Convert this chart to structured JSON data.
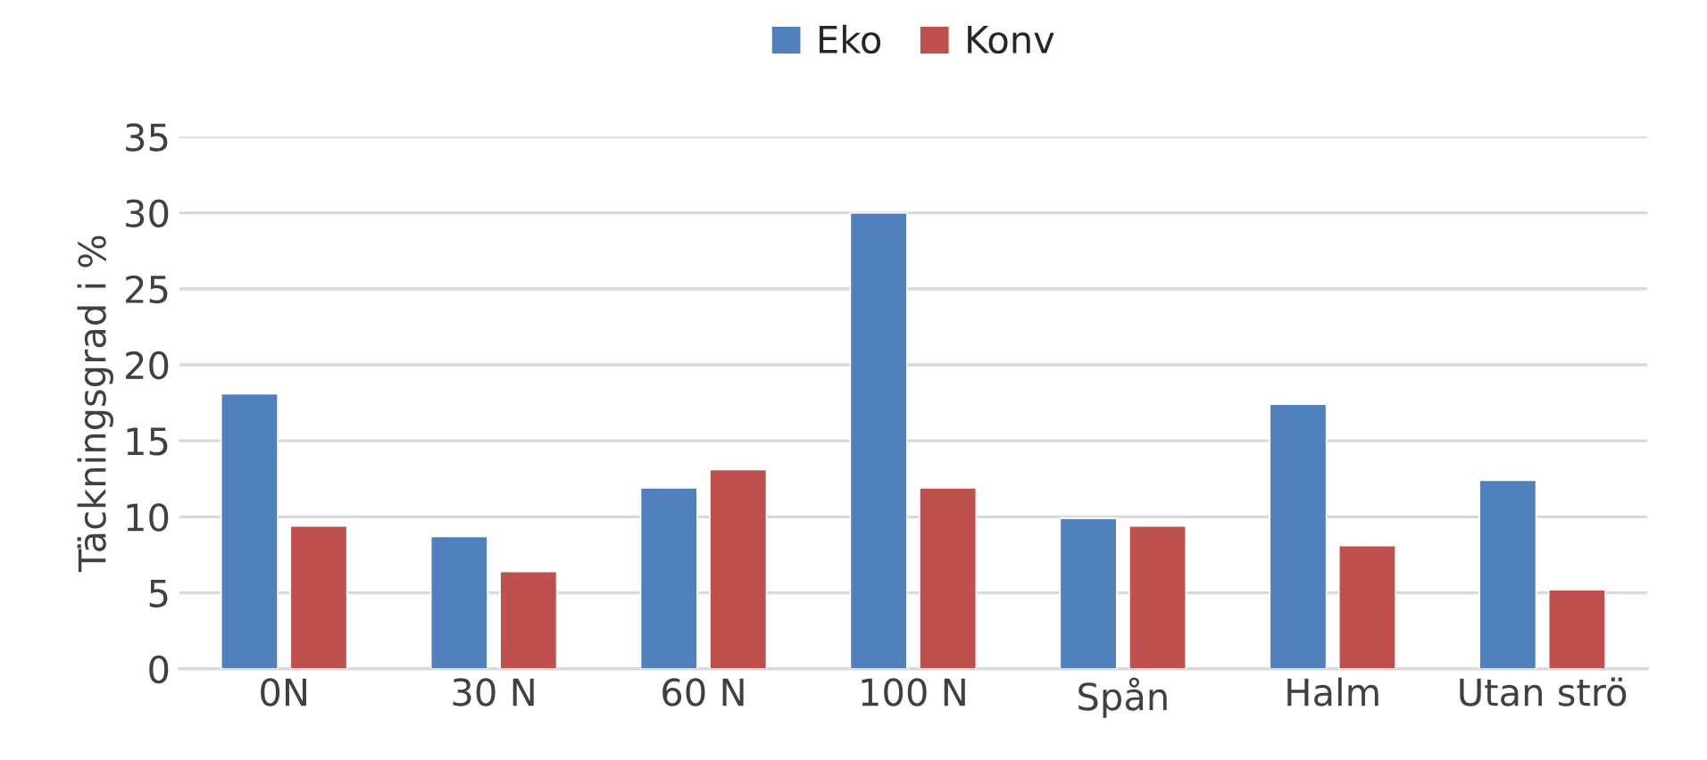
{
  "chart_data": {
    "type": "bar",
    "ylabel": "Täckningsgrad i %",
    "categories": [
      "0N",
      "30 N",
      "60 N",
      "100 N",
      "Spån",
      "Halm",
      "Utan strö"
    ],
    "series": [
      {
        "name": "Eko",
        "color": "#4f81bd",
        "values": [
          18.1,
          8.7,
          11.9,
          30,
          9.9,
          17.4,
          12.4
        ]
      },
      {
        "name": "Konv",
        "color": "#c0504d",
        "values": [
          9.4,
          6.4,
          13.1,
          11.9,
          9.4,
          8.1,
          5.2
        ]
      }
    ],
    "ylim": [
      0,
      35
    ],
    "yticks": [
      0,
      5,
      10,
      15,
      20,
      25,
      30,
      35
    ],
    "grid": "y",
    "legend": "top"
  }
}
